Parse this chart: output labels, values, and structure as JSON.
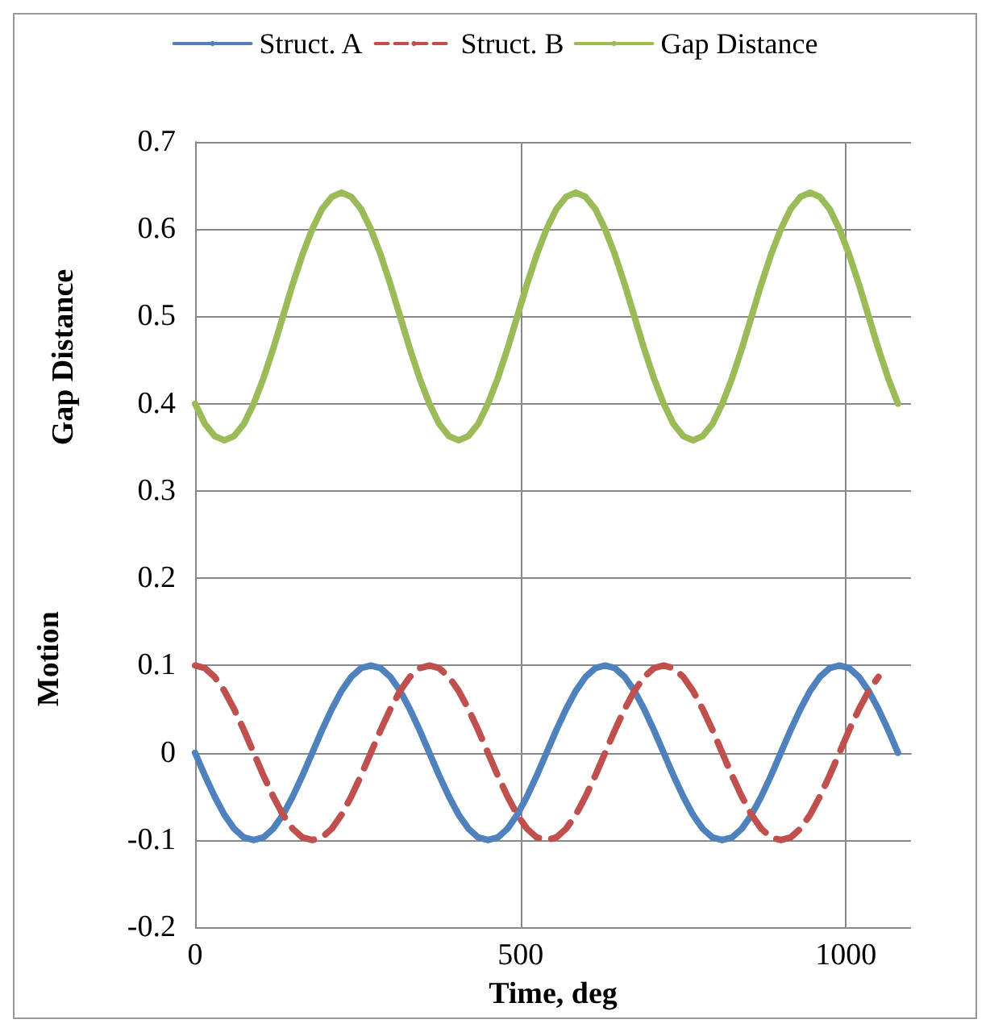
{
  "chart_data": {
    "type": "line",
    "xlabel": "Time, deg",
    "ylabel": "Gap Distance",
    "annotations": [
      "Motion"
    ],
    "x": [
      0,
      15,
      30,
      45,
      60,
      75,
      90,
      105,
      120,
      135,
      150,
      165,
      180,
      195,
      210,
      225,
      240,
      255,
      270,
      285,
      300,
      315,
      330,
      345,
      360,
      375,
      390,
      405,
      420,
      435,
      450,
      465,
      480,
      495,
      510,
      525,
      540,
      555,
      570,
      585,
      600,
      615,
      630,
      645,
      660,
      675,
      690,
      705,
      720,
      735,
      750,
      765,
      780,
      795,
      810,
      825,
      840,
      855,
      870,
      885,
      900,
      915,
      930,
      945,
      960,
      975,
      990,
      1005,
      1020,
      1035,
      1050,
      1065,
      1080
    ],
    "series": [
      {
        "name": "Struct. A",
        "color": "#4f81bd",
        "line_style": "solid",
        "values": [
          0,
          -0.026,
          -0.05,
          -0.071,
          -0.087,
          -0.097,
          -0.1,
          -0.097,
          -0.087,
          -0.071,
          -0.05,
          -0.026,
          0,
          0.026,
          0.05,
          0.071,
          0.087,
          0.097,
          0.1,
          0.097,
          0.087,
          0.071,
          0.05,
          0.026,
          0,
          -0.026,
          -0.05,
          -0.071,
          -0.087,
          -0.097,
          -0.1,
          -0.097,
          -0.087,
          -0.071,
          -0.05,
          -0.026,
          0,
          0.026,
          0.05,
          0.071,
          0.087,
          0.097,
          0.1,
          0.097,
          0.087,
          0.071,
          0.05,
          0.026,
          0,
          -0.026,
          -0.05,
          -0.071,
          -0.087,
          -0.097,
          -0.1,
          -0.097,
          -0.087,
          -0.071,
          -0.05,
          -0.026,
          0,
          0.026,
          0.05,
          0.071,
          0.087,
          0.097,
          0.1,
          0.097,
          0.087,
          0.071,
          0.05,
          0.026,
          0
        ]
      },
      {
        "name": "Struct. B",
        "color": "#c0504d",
        "line_style": "dashed",
        "values": [
          0.1,
          0.097,
          0.087,
          0.071,
          0.05,
          0.026,
          0,
          -0.026,
          -0.05,
          -0.071,
          -0.087,
          -0.097,
          -0.1,
          -0.097,
          -0.087,
          -0.071,
          -0.05,
          -0.026,
          0,
          0.026,
          0.05,
          0.071,
          0.087,
          0.097,
          0.1,
          0.097,
          0.087,
          0.071,
          0.05,
          0.026,
          0,
          -0.026,
          -0.05,
          -0.071,
          -0.087,
          -0.097,
          -0.1,
          -0.097,
          -0.087,
          -0.071,
          -0.05,
          -0.026,
          0,
          0.026,
          0.05,
          0.071,
          0.087,
          0.097,
          0.1,
          0.097,
          0.087,
          0.071,
          0.05,
          0.026,
          0,
          -0.026,
          -0.05,
          -0.071,
          -0.087,
          -0.097,
          -0.1,
          -0.097,
          -0.087,
          -0.071,
          -0.05,
          -0.026,
          0,
          0.026,
          0.05,
          0.071,
          0.087,
          null,
          null
        ]
      },
      {
        "name": "Gap Distance",
        "color": "#9bbb59",
        "line_style": "solid",
        "values": [
          0.4,
          0.377,
          0.363,
          0.358,
          0.363,
          0.377,
          0.4,
          0.429,
          0.463,
          0.5,
          0.537,
          0.571,
          0.6,
          0.623,
          0.637,
          0.642,
          0.637,
          0.623,
          0.6,
          0.571,
          0.537,
          0.5,
          0.463,
          0.429,
          0.4,
          0.377,
          0.363,
          0.358,
          0.363,
          0.377,
          0.4,
          0.429,
          0.463,
          0.5,
          0.537,
          0.571,
          0.6,
          0.623,
          0.637,
          0.642,
          0.637,
          0.623,
          0.6,
          0.571,
          0.537,
          0.5,
          0.463,
          0.429,
          0.4,
          0.377,
          0.363,
          0.358,
          0.363,
          0.377,
          0.4,
          0.429,
          0.463,
          0.5,
          0.537,
          0.571,
          0.6,
          0.623,
          0.637,
          0.642,
          0.637,
          0.623,
          0.6,
          0.571,
          0.537,
          0.5,
          0.463,
          0.429,
          0.4
        ]
      }
    ],
    "xlim": [
      0,
      1100
    ],
    "xticks": [
      0,
      500,
      1000
    ],
    "ylim": [
      -0.2,
      0.7
    ],
    "yticks": [
      -0.2,
      -0.1,
      0,
      0.1,
      0.2,
      0.3,
      0.4,
      0.5,
      0.6,
      0.7
    ],
    "grid": true,
    "legend": "top",
    "marker": "none"
  }
}
